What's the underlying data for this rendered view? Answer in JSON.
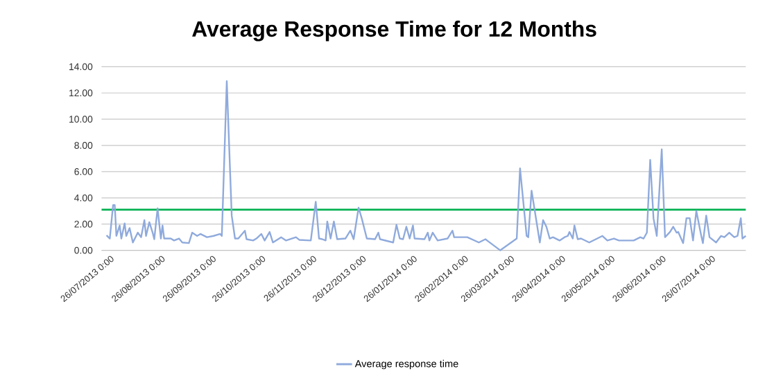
{
  "chart_data": {
    "type": "line",
    "title": "Average Response Time for 12 Months",
    "x": [
      "2013-07-25",
      "2013-07-27",
      "2013-07-29",
      "2013-07-30",
      "2013-07-31",
      "2013-08-02",
      "2013-08-03",
      "2013-08-05",
      "2013-08-06",
      "2013-08-08",
      "2013-08-10",
      "2013-08-13",
      "2013-08-15",
      "2013-08-17",
      "2013-08-18",
      "2013-08-20",
      "2013-08-22",
      "2013-08-23",
      "2013-08-25",
      "2013-08-27",
      "2013-08-28",
      "2013-08-29",
      "2013-09-02",
      "2013-09-04",
      "2013-09-07",
      "2013-09-09",
      "2013-09-13",
      "2013-09-15",
      "2013-09-18",
      "2013-09-20",
      "2013-09-24",
      "2013-09-28",
      "2013-10-02",
      "2013-10-03",
      "2013-10-06",
      "2013-10-09",
      "2013-10-11",
      "2013-10-13",
      "2013-10-17",
      "2013-10-18",
      "2013-10-22",
      "2013-10-24",
      "2013-10-27",
      "2013-10-29",
      "2013-11-01",
      "2013-11-03",
      "2013-11-08",
      "2013-11-11",
      "2013-11-17",
      "2013-11-19",
      "2013-11-26",
      "2013-11-29",
      "2013-12-01",
      "2013-12-03",
      "2013-12-05",
      "2013-12-06",
      "2013-12-08",
      "2013-12-10",
      "2013-12-12",
      "2013-12-17",
      "2013-12-20",
      "2013-12-22",
      "2013-12-25",
      "2013-12-27",
      "2013-12-30",
      "2014-01-04",
      "2014-01-06",
      "2014-01-07",
      "2014-01-15",
      "2014-01-17",
      "2014-01-19",
      "2014-01-21",
      "2014-01-23",
      "2014-01-25",
      "2014-01-27",
      "2014-01-28",
      "2014-02-03",
      "2014-02-05",
      "2014-02-06",
      "2014-02-08",
      "2014-02-11",
      "2014-02-17",
      "2014-02-20",
      "2014-02-21",
      "2014-03-01",
      "2014-03-08",
      "2014-03-12",
      "2014-03-13",
      "2014-03-21",
      "2014-03-31",
      "2014-04-02",
      "2014-04-06",
      "2014-04-07",
      "2014-04-09",
      "2014-04-14",
      "2014-04-16",
      "2014-04-18",
      "2014-04-20",
      "2014-04-22",
      "2014-04-26",
      "2014-04-29",
      "2014-05-01",
      "2014-05-02",
      "2014-05-04",
      "2014-05-05",
      "2014-05-07",
      "2014-05-09",
      "2014-05-14",
      "2014-05-18",
      "2014-05-22",
      "2014-05-25",
      "2014-05-29",
      "2014-06-01",
      "2014-06-10",
      "2014-06-14",
      "2014-06-16",
      "2014-06-18",
      "2014-06-20",
      "2014-06-22",
      "2014-06-24",
      "2014-06-27",
      "2014-06-29",
      "2014-07-02",
      "2014-07-04",
      "2014-07-06",
      "2014-07-07",
      "2014-07-10",
      "2014-07-12",
      "2014-07-14",
      "2014-07-16",
      "2014-07-18",
      "2014-07-21",
      "2014-07-22",
      "2014-07-24",
      "2014-07-26",
      "2014-07-30",
      "2014-08-02",
      "2014-08-04",
      "2014-08-07",
      "2014-08-10",
      "2014-08-12",
      "2014-08-14",
      "2014-08-15",
      "2014-08-17"
    ],
    "series": [
      {
        "name": "Average response time",
        "color": "#8faadc",
        "values": [
          1.15,
          0.9,
          3.45,
          3.45,
          1.1,
          1.9,
          0.9,
          2.05,
          1.1,
          1.7,
          0.6,
          1.35,
          1.0,
          2.3,
          1.1,
          2.15,
          1.35,
          0.85,
          3.2,
          0.9,
          1.9,
          0.9,
          0.9,
          0.75,
          0.9,
          0.6,
          0.55,
          1.35,
          1.1,
          1.25,
          1.0,
          1.1,
          1.25,
          1.1,
          12.9,
          2.65,
          0.9,
          0.9,
          1.5,
          0.85,
          0.75,
          0.9,
          1.25,
          0.75,
          1.4,
          0.6,
          1.0,
          0.75,
          1.0,
          0.8,
          0.75,
          3.7,
          0.9,
          0.85,
          0.75,
          2.2,
          0.9,
          2.2,
          0.85,
          0.9,
          1.5,
          0.85,
          3.25,
          2.4,
          0.9,
          0.85,
          1.35,
          0.85,
          0.6,
          1.95,
          0.9,
          0.85,
          1.8,
          0.9,
          1.9,
          0.9,
          0.85,
          1.35,
          0.75,
          1.35,
          0.75,
          0.9,
          1.5,
          1.0,
          1.0,
          0.6,
          0.85,
          0.75,
          0.0,
          0.9,
          6.25,
          1.1,
          1.0,
          4.55,
          0.6,
          2.3,
          1.8,
          0.9,
          1.0,
          0.75,
          1.0,
          1.1,
          1.4,
          0.9,
          1.9,
          0.85,
          0.9,
          0.6,
          0.85,
          1.1,
          0.75,
          0.9,
          0.75,
          0.75,
          1.0,
          0.9,
          1.35,
          6.9,
          2.45,
          1.1,
          7.7,
          1.0,
          1.4,
          1.8,
          1.35,
          1.4,
          0.55,
          2.45,
          2.45,
          0.75,
          3.0,
          1.1,
          0.55,
          2.65,
          1.0,
          0.6,
          1.1,
          1.0,
          1.35,
          1.0,
          1.1,
          2.45,
          0.9,
          1.1
        ]
      }
    ],
    "xlim": [
      "2013-07-22",
      "2014-08-17"
    ],
    "xticks": [
      {
        "value": "2013-07-26",
        "label": "26/07/2013 0:00"
      },
      {
        "value": "2013-08-26",
        "label": "26/08/2013 0:00"
      },
      {
        "value": "2013-09-26",
        "label": "26/09/2013 0:00"
      },
      {
        "value": "2013-10-26",
        "label": "26/10/2013 0:00"
      },
      {
        "value": "2013-11-26",
        "label": "26/11/2013 0:00"
      },
      {
        "value": "2013-12-26",
        "label": "26/12/2013 0:00"
      },
      {
        "value": "2014-01-26",
        "label": "26/01/2014 0:00"
      },
      {
        "value": "2014-02-26",
        "label": "26/02/2014 0:00"
      },
      {
        "value": "2014-03-26",
        "label": "26/03/2014 0:00"
      },
      {
        "value": "2014-04-26",
        "label": "26/04/2014 0:00"
      },
      {
        "value": "2014-05-26",
        "label": "26/05/2014 0:00"
      },
      {
        "value": "2014-06-26",
        "label": "26/06/2014 0:00"
      },
      {
        "value": "2014-07-26",
        "label": "26/07/2014 0:00"
      }
    ],
    "ylim": [
      0,
      14
    ],
    "yticks": [
      {
        "value": 0,
        "label": "0.00"
      },
      {
        "value": 2,
        "label": "2.00"
      },
      {
        "value": 4,
        "label": "4.00"
      },
      {
        "value": 6,
        "label": "6.00"
      },
      {
        "value": 8,
        "label": "8.00"
      },
      {
        "value": 10,
        "label": "10.00"
      },
      {
        "value": 12,
        "label": "12.00"
      },
      {
        "value": 14,
        "label": "14.00"
      }
    ],
    "grid": "y",
    "legend": "bottom",
    "line_style": "solid",
    "ref_lines": [
      {
        "axis": "y",
        "value": 3.1,
        "color": "#00b050"
      }
    ]
  }
}
